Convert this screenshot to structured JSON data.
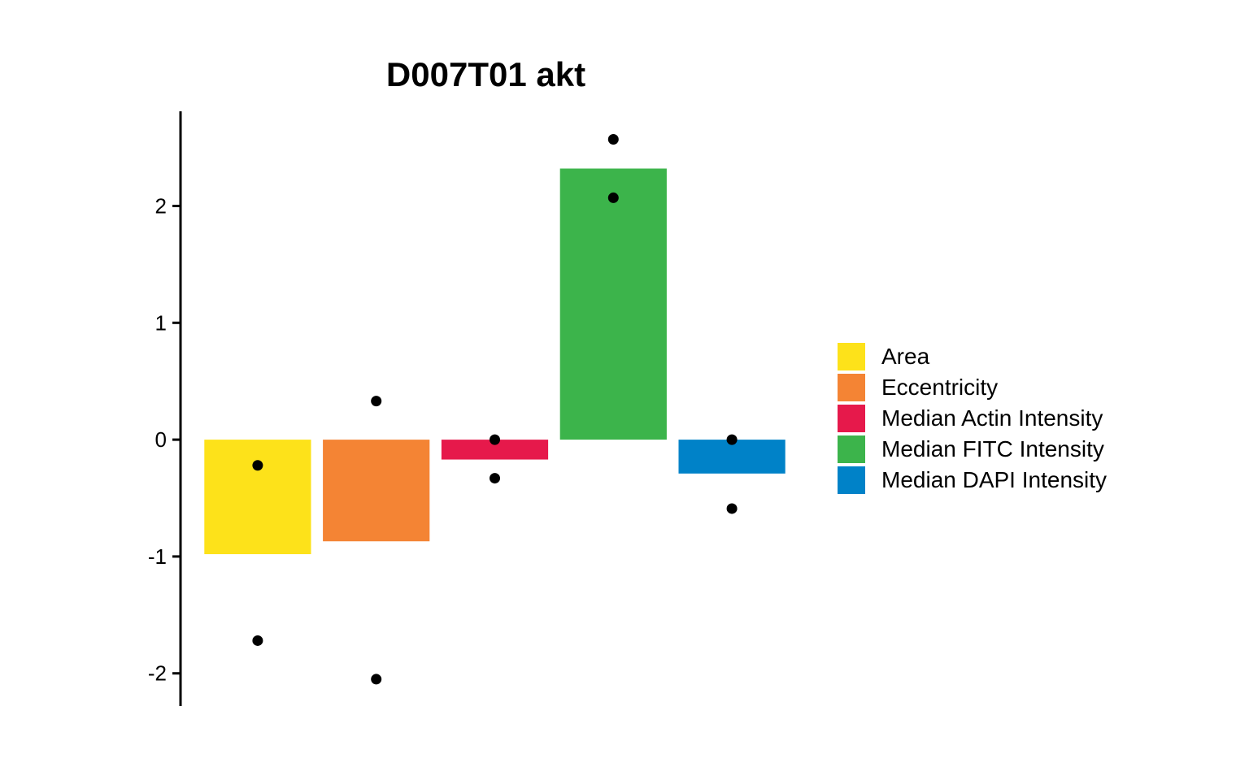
{
  "chart_data": {
    "type": "bar",
    "title": "D007T01 akt",
    "xlabel": "",
    "ylabel": "",
    "ylim": [
      -2.28,
      2.81
    ],
    "yticks": [
      -2,
      -1,
      0,
      1,
      2
    ],
    "grid": false,
    "legend_position": "right",
    "categories": [
      "Area",
      "Eccentricity",
      "Median Actin Intensity",
      "Median FITC Intensity",
      "Median DAPI Intensity"
    ],
    "values": [
      -0.98,
      -0.87,
      -0.17,
      2.32,
      -0.29
    ],
    "colors": [
      "#FDE21A",
      "#F48434",
      "#E6194B",
      "#3CB44B",
      "#0082C8"
    ],
    "points": [
      [
        -0.22,
        -1.72
      ],
      [
        0.33,
        -2.05
      ],
      [
        0.0,
        -0.33
      ],
      [
        2.57,
        2.07
      ],
      [
        0.0,
        -0.59
      ]
    ]
  }
}
